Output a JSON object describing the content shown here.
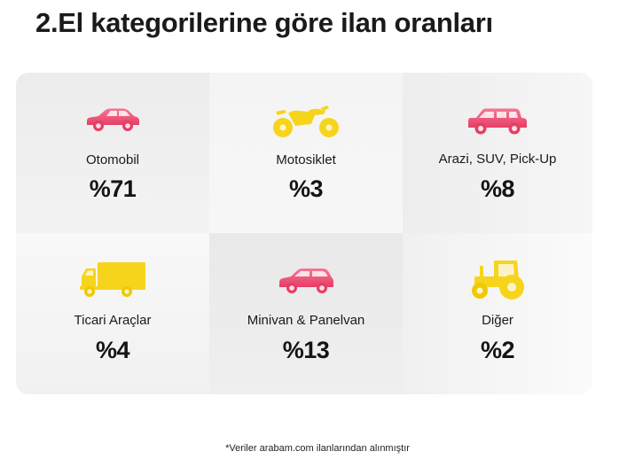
{
  "title": "2.El kategorilerine göre ilan oranları",
  "colors": {
    "pink": "#f0557a",
    "yellow": "#f7d41c",
    "panel": "#f2f2f2"
  },
  "categories": [
    {
      "label": "Otomobil",
      "value": "%71",
      "icon": "car-icon"
    },
    {
      "label": "Motosiklet",
      "value": "%3",
      "icon": "motorcycle-icon"
    },
    {
      "label": "Arazi, SUV, Pick-Up",
      "value": "%8",
      "icon": "suv-icon"
    },
    {
      "label": "Ticari Araçlar",
      "value": "%4",
      "icon": "truck-icon"
    },
    {
      "label": "Minivan & Panelvan",
      "value": "%13",
      "icon": "minivan-icon"
    },
    {
      "label": "Diğer",
      "value": "%2",
      "icon": "tractor-icon"
    }
  ],
  "footnote": "*Veriler arabam.com ilanlarından alınmıştır"
}
